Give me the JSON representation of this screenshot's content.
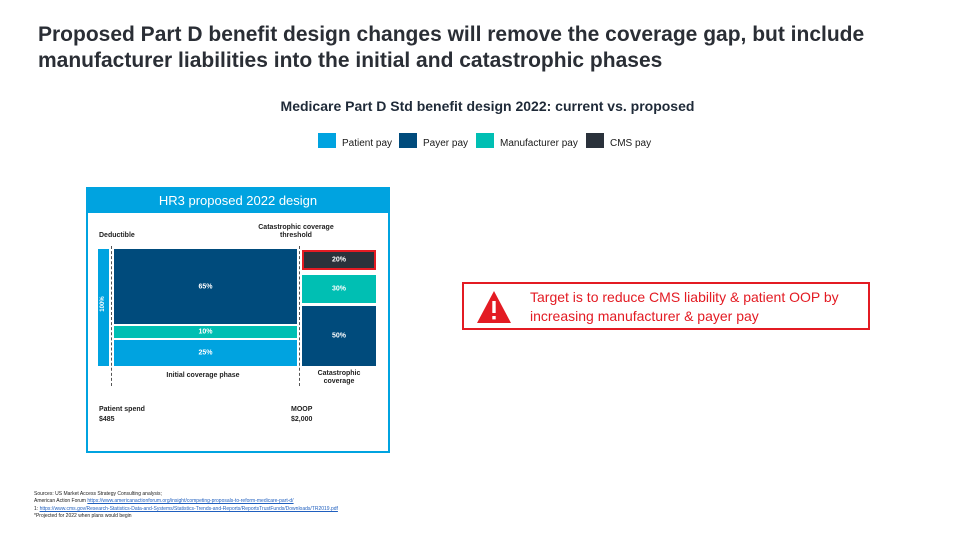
{
  "title": "Proposed Part D benefit design changes will remove the coverage gap, but include manufacturer liabilities into the initial and catastrophic phases",
  "subtitle": "Medicare Part D Std benefit design 2022: current vs. proposed",
  "legend": [
    {
      "label": "Patient pay",
      "color": "#00a3e0"
    },
    {
      "label": "Payer pay",
      "color": "#004b7c"
    },
    {
      "label": "Manufacturer pay",
      "color": "#00bfb3"
    },
    {
      "label": "CMS pay",
      "color": "#2a323b"
    }
  ],
  "panel": {
    "header": "HR3 proposed 2022 design",
    "deductible": "Deductible",
    "catastrophic_threshold": "Catastrophic coverage threshold",
    "side_label": "100%",
    "initial_phase": "Initial coverage phase",
    "catastrophic_phase": "Catastrophic coverage",
    "patient_spend_label": "Patient spend",
    "patient_spend_value": "$485",
    "moop_label": "MOOP",
    "moop_value": "$2,000",
    "initial_segments": [
      "65%",
      "10%",
      "25%"
    ],
    "catastrophic_segments": [
      "20%",
      "30%",
      "50%"
    ]
  },
  "callout": {
    "text": "Target is to reduce CMS liability & patient OOP by increasing manufacturer & payer pay",
    "icon": "warning-icon"
  },
  "sources": {
    "line1": "Sources: US Market Access Strategy Consulting analysis;",
    "line2_prefix": "American Action Forum ",
    "line2_link": "https://www.americanactionforum.org/insight/competing-proposals-to-reform-medicare-part-d/",
    "line3_prefix": "1: ",
    "line3_link": "https://www.cms.gov/Research-Statistics-Data-and-Systems/Statistics-Trends-and-Reports/ReportsTrustFunds/Downloads/TR2019.pdf",
    "line4": "*Projected for 2022 when plans would begin"
  }
}
